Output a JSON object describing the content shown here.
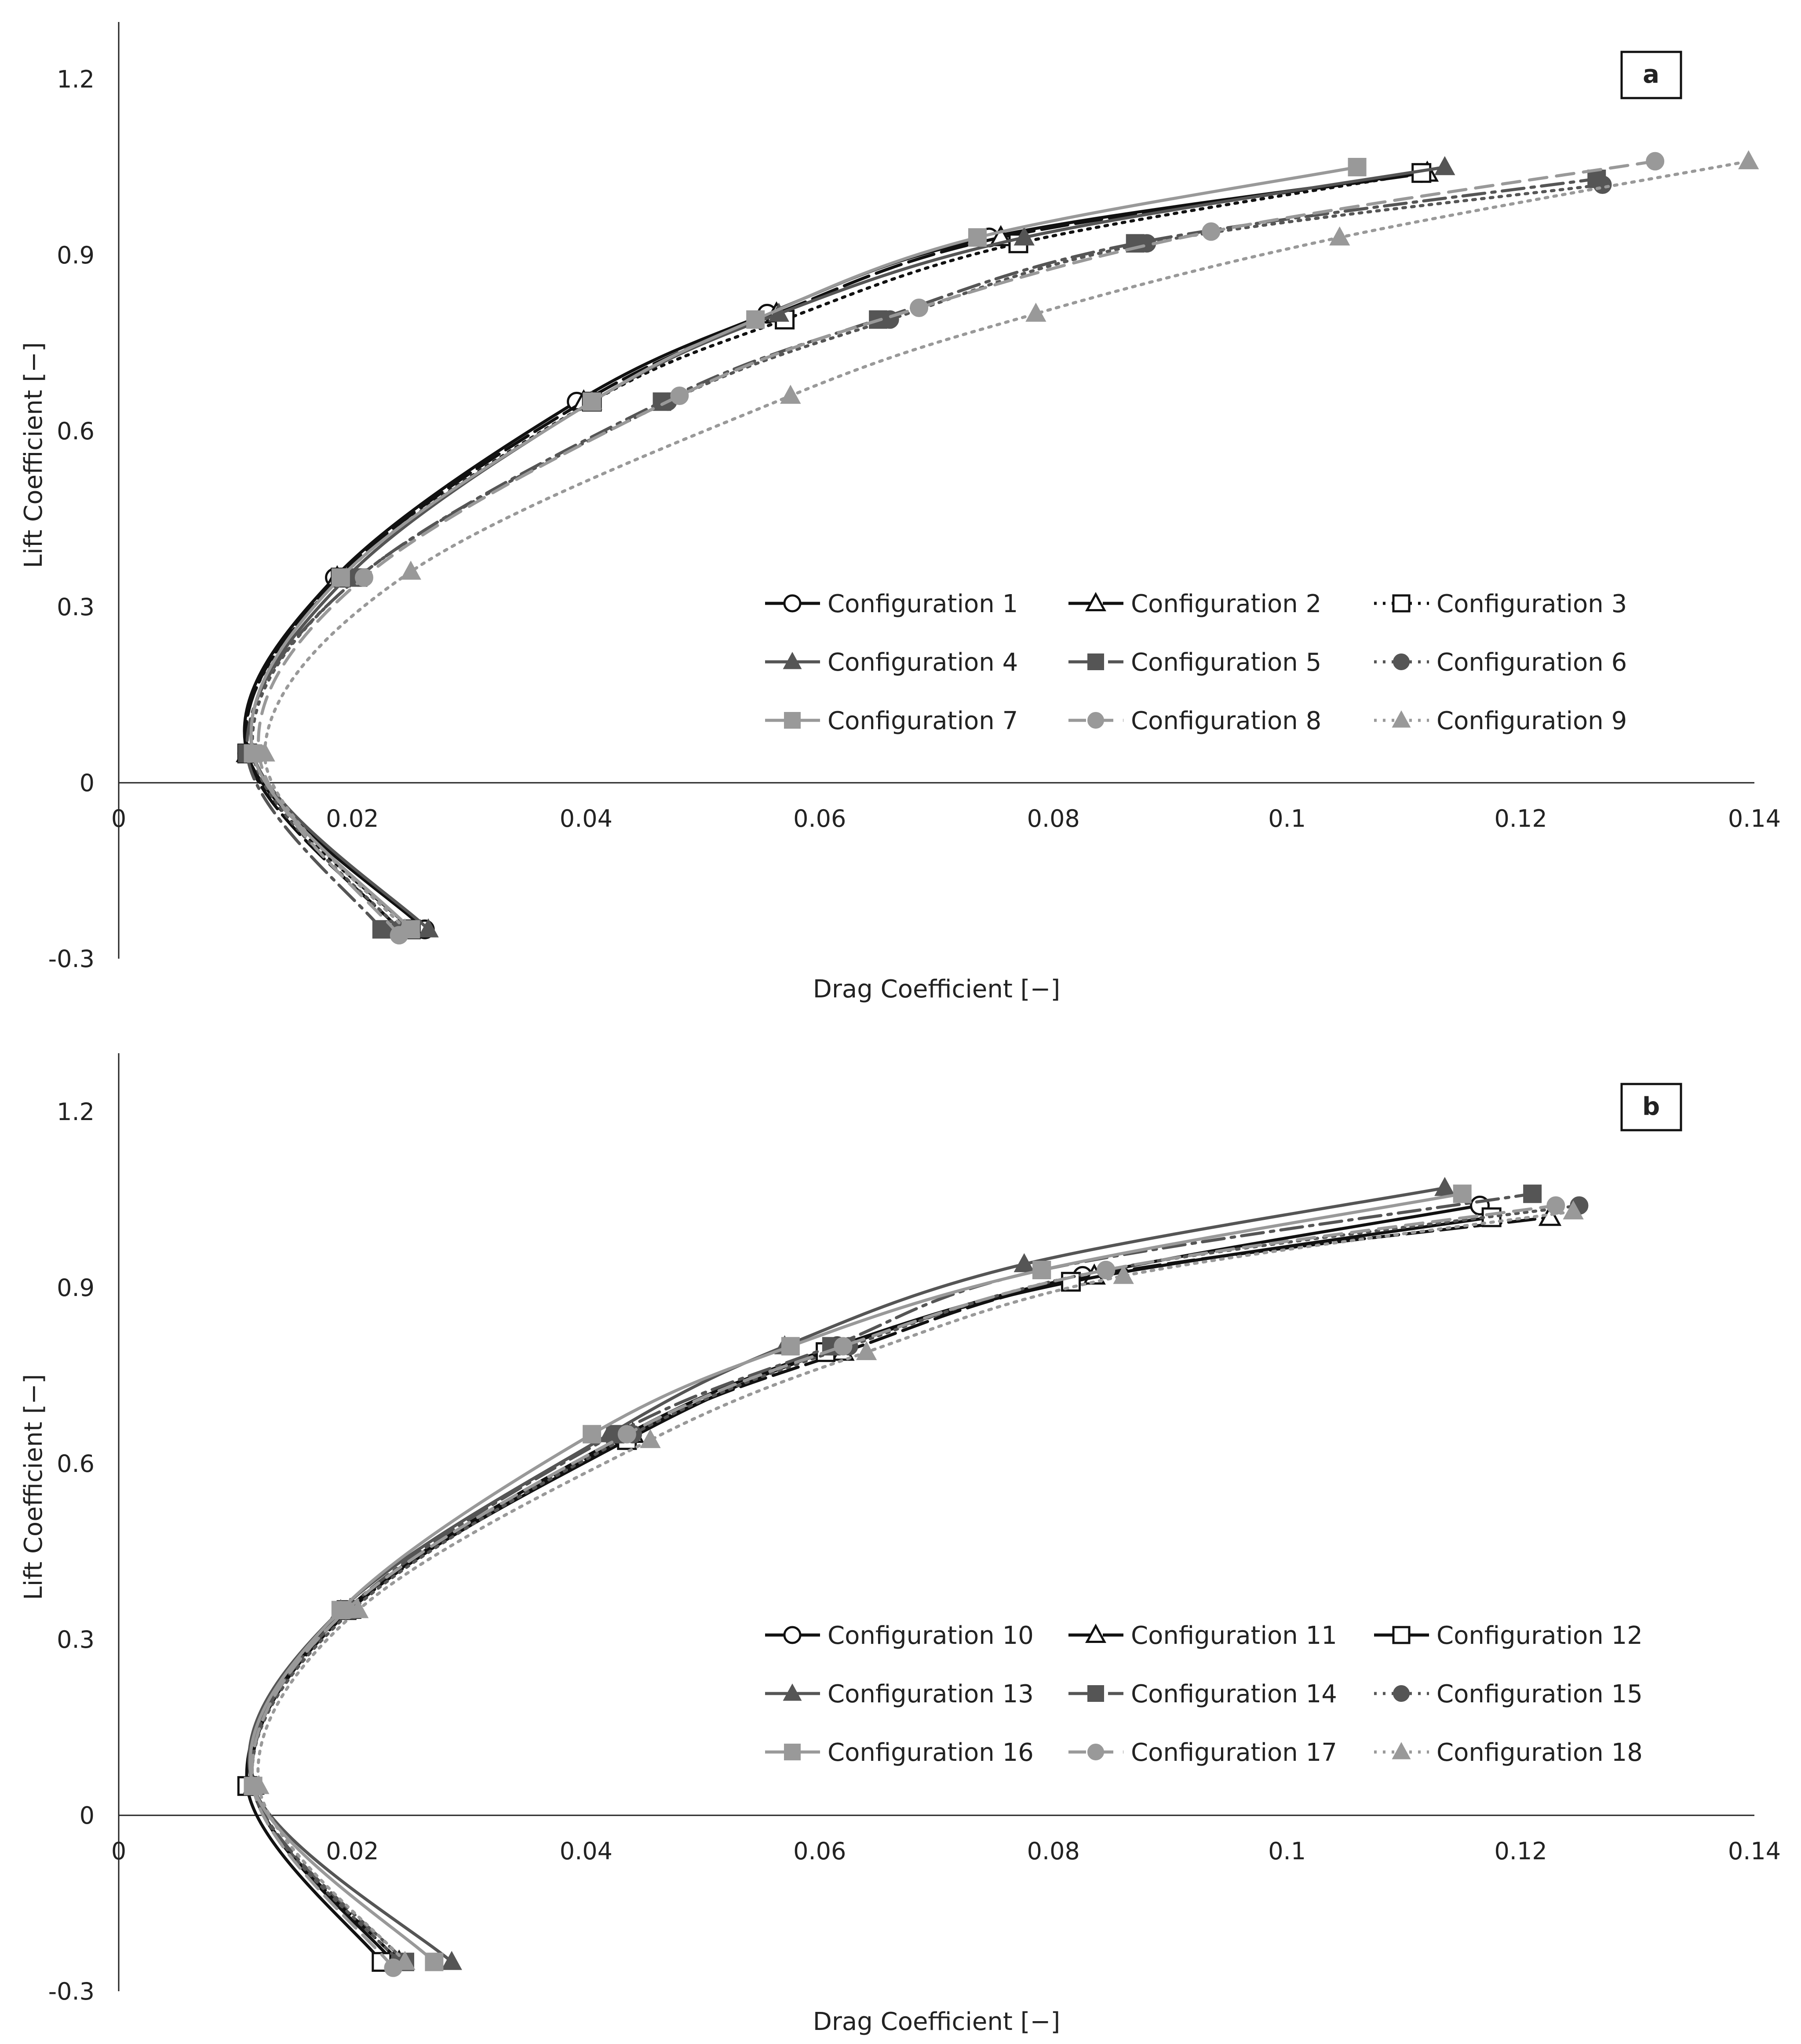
{
  "chart_data": [
    {
      "type": "line",
      "panel_label": "a",
      "xlabel": "Drag Coefficient [−]",
      "ylabel": "Lift Coefficient [−]",
      "xlim": [
        0,
        0.14
      ],
      "ylim": [
        -0.3,
        1.3
      ],
      "x_ticks": [
        0,
        0.02,
        0.04,
        0.06,
        0.08,
        0.1,
        0.12,
        0.14
      ],
      "x_tick_labels": [
        "0",
        "0.02",
        "0.04",
        "0.06",
        "0.08",
        "0.1",
        "0.12",
        "0.14"
      ],
      "y_ticks": [
        -0.3,
        0,
        0.3,
        0.6,
        0.9,
        1.2
      ],
      "y_tick_labels": [
        "-0.3",
        "0",
        "0.3",
        "0.6",
        "0.9",
        "1.2"
      ],
      "legend_position": "lower-right",
      "series": [
        {
          "name": "Configuration 1",
          "color": "#111111",
          "dash": "solid",
          "marker": "circle-open",
          "x": [
            0.0262,
            0.011,
            0.0185,
            0.0392,
            0.0555,
            0.0745,
            0.1115
          ],
          "y": [
            -0.25,
            0.05,
            0.35,
            0.65,
            0.8,
            0.93,
            1.04
          ]
        },
        {
          "name": "Configuration 2",
          "color": "#111111",
          "dash": "longdash",
          "marker": "triangle-open",
          "x": [
            0.024,
            0.011,
            0.0187,
            0.0398,
            0.0563,
            0.0755,
            0.112
          ],
          "y": [
            -0.25,
            0.05,
            0.35,
            0.65,
            0.8,
            0.93,
            1.04
          ]
        },
        {
          "name": "Configuration 3",
          "color": "#111111",
          "dash": "dotted",
          "marker": "square-open",
          "x": [
            0.025,
            0.011,
            0.019,
            0.0405,
            0.057,
            0.077,
            0.1115
          ],
          "y": [
            -0.25,
            0.05,
            0.35,
            0.65,
            0.79,
            0.92,
            1.04
          ]
        },
        {
          "name": "Configuration 4",
          "color": "#555555",
          "dash": "solid",
          "marker": "triangle",
          "x": [
            0.0265,
            0.0115,
            0.0195,
            0.0405,
            0.0565,
            0.0775,
            0.1135
          ],
          "y": [
            -0.25,
            0.05,
            0.35,
            0.65,
            0.8,
            0.93,
            1.05
          ]
        },
        {
          "name": "Configuration 5",
          "color": "#555555",
          "dash": "dashdot",
          "marker": "square",
          "x": [
            0.0225,
            0.011,
            0.0205,
            0.0465,
            0.065,
            0.087,
            0.1265
          ],
          "y": [
            -0.25,
            0.05,
            0.35,
            0.65,
            0.79,
            0.92,
            1.03
          ]
        },
        {
          "name": "Configuration 6",
          "color": "#555555",
          "dash": "dotted",
          "marker": "circle",
          "x": [
            0.024,
            0.0115,
            0.0205,
            0.047,
            0.066,
            0.088,
            0.127
          ],
          "y": [
            -0.25,
            0.05,
            0.35,
            0.65,
            0.79,
            0.92,
            1.02
          ]
        },
        {
          "name": "Configuration 7",
          "color": "#999999",
          "dash": "solid",
          "marker": "square",
          "x": [
            0.025,
            0.0115,
            0.019,
            0.0405,
            0.0545,
            0.0735,
            0.106
          ],
          "y": [
            -0.25,
            0.05,
            0.35,
            0.65,
            0.79,
            0.93,
            1.05
          ]
        },
        {
          "name": "Configuration 8",
          "color": "#999999",
          "dash": "dashed",
          "marker": "circle",
          "x": [
            0.024,
            0.012,
            0.021,
            0.048,
            0.0685,
            0.0935,
            0.1315
          ],
          "y": [
            -0.26,
            0.05,
            0.35,
            0.66,
            0.81,
            0.94,
            1.06
          ]
        },
        {
          "name": "Configuration 9",
          "color": "#999999",
          "dash": "dotted",
          "marker": "triangle",
          "x": [
            0.0245,
            0.0125,
            0.025,
            0.0575,
            0.0785,
            0.1045,
            0.1395
          ],
          "y": [
            -0.25,
            0.05,
            0.36,
            0.66,
            0.8,
            0.93,
            1.06
          ]
        }
      ]
    },
    {
      "type": "line",
      "panel_label": "b",
      "xlabel": "Drag Coefficient [−]",
      "ylabel": "Lift Coefficient [−]",
      "xlim": [
        0,
        0.14
      ],
      "ylim": [
        -0.3,
        1.3
      ],
      "x_ticks": [
        0,
        0.02,
        0.04,
        0.06,
        0.08,
        0.1,
        0.12,
        0.14
      ],
      "x_tick_labels": [
        "0",
        "0.02",
        "0.04",
        "0.06",
        "0.08",
        "0.1",
        "0.12",
        "0.14"
      ],
      "y_ticks": [
        -0.3,
        0,
        0.3,
        0.6,
        0.9,
        1.2
      ],
      "y_tick_labels": [
        "-0.3",
        "0",
        "0.3",
        "0.6",
        "0.9",
        "1.2"
      ],
      "legend_position": "lower-right",
      "series": [
        {
          "name": "Configuration 10",
          "color": "#111111",
          "dash": "solid",
          "marker": "circle-open",
          "x": [
            0.0235,
            0.0115,
            0.0195,
            0.0435,
            0.0615,
            0.0825,
            0.1165
          ],
          "y": [
            -0.25,
            0.05,
            0.35,
            0.65,
            0.8,
            0.92,
            1.04
          ]
        },
        {
          "name": "Configuration 11",
          "color": "#111111",
          "dash": "longdash",
          "marker": "triangle-open",
          "x": [
            0.024,
            0.0115,
            0.0198,
            0.044,
            0.062,
            0.0835,
            0.1225
          ],
          "y": [
            -0.25,
            0.05,
            0.35,
            0.65,
            0.79,
            0.92,
            1.02
          ]
        },
        {
          "name": "Configuration 12",
          "color": "#111111",
          "dash": "solid",
          "marker": "square-open",
          "x": [
            0.0225,
            0.011,
            0.0195,
            0.0435,
            0.0605,
            0.0815,
            0.1175
          ],
          "y": [
            -0.25,
            0.05,
            0.35,
            0.64,
            0.79,
            0.91,
            1.02
          ]
        },
        {
          "name": "Configuration 13",
          "color": "#555555",
          "dash": "solid",
          "marker": "triangle",
          "x": [
            0.0285,
            0.0115,
            0.019,
            0.042,
            0.057,
            0.0775,
            0.1135
          ],
          "y": [
            -0.25,
            0.05,
            0.35,
            0.65,
            0.8,
            0.94,
            1.07
          ]
        },
        {
          "name": "Configuration 14",
          "color": "#555555",
          "dash": "dashdot",
          "marker": "square",
          "x": [
            0.0245,
            0.0115,
            0.0195,
            0.0425,
            0.061,
            0.079,
            0.121
          ],
          "y": [
            -0.25,
            0.05,
            0.35,
            0.65,
            0.8,
            0.93,
            1.06
          ]
        },
        {
          "name": "Configuration 15",
          "color": "#555555",
          "dash": "dotted",
          "marker": "circle",
          "x": [
            0.024,
            0.0115,
            0.02,
            0.044,
            0.0625,
            0.0845,
            0.125
          ],
          "y": [
            -0.25,
            0.05,
            0.35,
            0.65,
            0.8,
            0.93,
            1.04
          ]
        },
        {
          "name": "Configuration 16",
          "color": "#999999",
          "dash": "solid",
          "marker": "square",
          "x": [
            0.027,
            0.0115,
            0.019,
            0.0405,
            0.0575,
            0.079,
            0.115
          ],
          "y": [
            -0.25,
            0.05,
            0.35,
            0.65,
            0.8,
            0.93,
            1.06
          ]
        },
        {
          "name": "Configuration 17",
          "color": "#999999",
          "dash": "dashed",
          "marker": "circle",
          "x": [
            0.0235,
            0.0115,
            0.0195,
            0.0435,
            0.062,
            0.0845,
            0.123
          ],
          "y": [
            -0.26,
            0.05,
            0.35,
            0.65,
            0.8,
            0.93,
            1.04
          ]
        },
        {
          "name": "Configuration 18",
          "color": "#999999",
          "dash": "dotted",
          "marker": "triangle",
          "x": [
            0.0245,
            0.012,
            0.0205,
            0.0455,
            0.064,
            0.086,
            0.1245
          ],
          "y": [
            -0.25,
            0.05,
            0.35,
            0.64,
            0.79,
            0.92,
            1.03
          ]
        }
      ]
    }
  ]
}
